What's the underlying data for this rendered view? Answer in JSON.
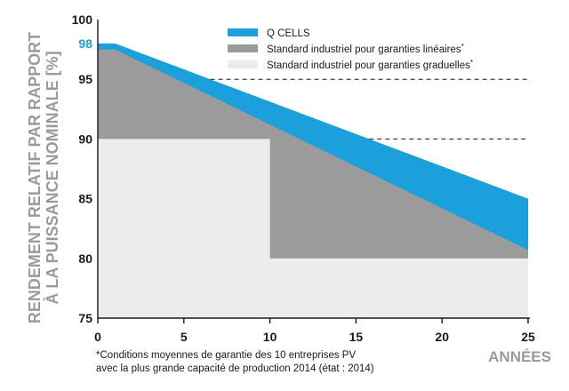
{
  "chart_data": {
    "type": "area",
    "xlabel": "ANNÉES",
    "ylabel_lines": [
      "RENDEMENT RELATIF PAR RAPPORT",
      "À LA PUISSANCE NOMINALE [%]"
    ],
    "xlim": [
      0,
      25
    ],
    "ylim": [
      75,
      100
    ],
    "x_ticks": [
      "0",
      "5",
      "10",
      "15",
      "20",
      "25"
    ],
    "y_ticks": [
      "75",
      "80",
      "85",
      "90",
      "95",
      "100"
    ],
    "highlight_tick": "98",
    "grid": false,
    "legend_position": "top",
    "series": [
      {
        "name": "Q CELLS",
        "color": "#1ba0db",
        "points": [
          [
            0,
            98
          ],
          [
            1,
            98
          ],
          [
            25,
            85
          ]
        ]
      },
      {
        "name": "Standard industriel pour garanties linéaires*",
        "color": "#9b9b9b",
        "points": [
          [
            0,
            97.5
          ],
          [
            1,
            97.5
          ],
          [
            25,
            80.7
          ]
        ]
      },
      {
        "name": "Standard industriel pour garanties graduelles*",
        "color": "#ececec",
        "points": [
          [
            0,
            90
          ],
          [
            10,
            90
          ],
          [
            10,
            80
          ],
          [
            25,
            80
          ]
        ]
      }
    ],
    "dashed_lines": [
      {
        "y": 95,
        "x_end": 25
      },
      {
        "y": 90,
        "x_end": 25
      }
    ]
  },
  "footnote": {
    "line1": "*Conditions moyennes de garantie des 10 entreprises PV",
    "line2": "avec la plus grande capacité de production 2014 (état : 2014)"
  }
}
